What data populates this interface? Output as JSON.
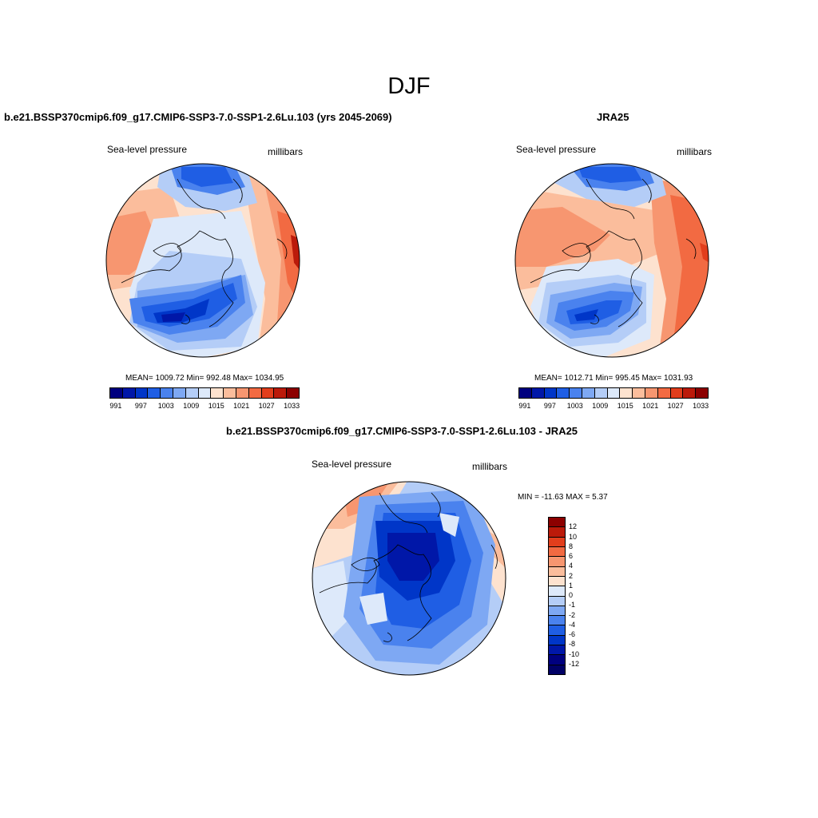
{
  "figure": {
    "title": "DJF"
  },
  "panels": {
    "model": {
      "title": "b.e21.BSSP370cmip6.f09_g17.CMIP6-SSP3-7.0-SSP1-2.6Lu.103 (yrs 2045-2069)",
      "variable": "Sea-level pressure",
      "units": "millibars",
      "stats": "MEAN= 1009.72  Min= 992.48  Max= 1034.95"
    },
    "obs": {
      "title": "JRA25",
      "variable": "Sea-level pressure",
      "units": "millibars",
      "stats": "MEAN= 1012.71  Min= 995.45  Max= 1031.93"
    },
    "diff": {
      "title": "b.e21.BSSP370cmip6.f09_g17.CMIP6-SSP3-7.0-SSP1-2.6Lu.103 - JRA25",
      "variable": "Sea-level pressure",
      "units": "millibars",
      "stats": "MIN = -11.63 MAX =   5.37"
    }
  },
  "colorbars": {
    "absolute": {
      "colors": [
        "#00007f",
        "#0017a8",
        "#0036c8",
        "#1f5ee4",
        "#4a82ee",
        "#7ea8f3",
        "#b4cdf7",
        "#dde9fa",
        "#fde2cf",
        "#fbbd9c",
        "#f79670",
        "#f26a42",
        "#e23e1c",
        "#bb1a0a",
        "#8c0000"
      ],
      "labels": [
        "991",
        "997",
        "1003",
        "1009",
        "1015",
        "1021",
        "1027",
        "1033"
      ]
    },
    "difference": {
      "colors": [
        "#8c0000",
        "#bb1a0a",
        "#e23e1c",
        "#f26a42",
        "#f79670",
        "#fbbd9c",
        "#fde2cf",
        "#dde9fa",
        "#b4cdf7",
        "#7ea8f3",
        "#4a82ee",
        "#1f5ee4",
        "#0036c8",
        "#0017a8",
        "#00007f",
        "#000066"
      ],
      "labels": [
        "12",
        "10",
        "8",
        "6",
        "4",
        "2",
        "1",
        "0",
        "-1",
        "-2",
        "-4",
        "-6",
        "-8",
        "-10",
        "-12"
      ]
    }
  }
}
